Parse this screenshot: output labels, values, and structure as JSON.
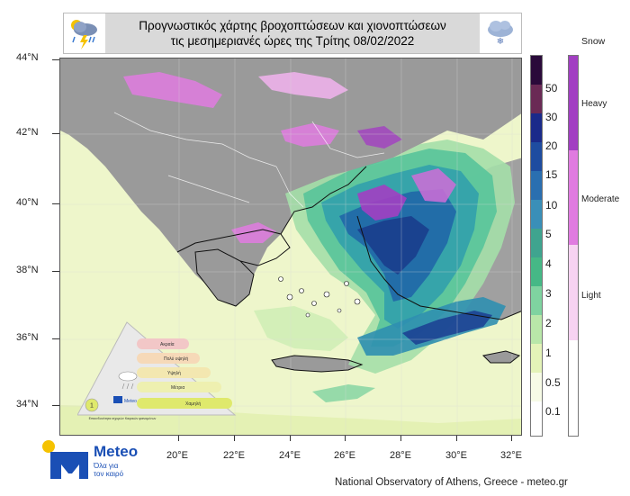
{
  "header": {
    "title_line1": "Προγνωστικός χάρτης βροχοπτώσεων  και χιονοπτώσεων",
    "title_line2": "τις μεσημεριανές ώρες της Τρίτης 08/02/2022",
    "left_icon": "thunderstorm-rain-icon",
    "right_icon": "snow-cloud-icon"
  },
  "axes": {
    "latitudes": [
      "44°N",
      "42°N",
      "40°N",
      "38°N",
      "36°N",
      "34°N"
    ],
    "longitudes": [
      "20°E",
      "22°E",
      "24°E",
      "26°E",
      "28°E",
      "30°E",
      "32°E"
    ]
  },
  "rain_legend": {
    "labels": [
      "50",
      "30",
      "20",
      "15",
      "10",
      "5",
      "4",
      "3",
      "2",
      "1",
      "0.5",
      "0.1"
    ],
    "colors": [
      "#2a0a3a",
      "#6a2a55",
      "#1a2a8a",
      "#1e4ca0",
      "#2a6fb0",
      "#3a8fb8",
      "#3fa48f",
      "#46b886",
      "#7fd3a0",
      "#b9e7a9",
      "#e4f3b8",
      "#f7fbe6",
      "#ffffff"
    ]
  },
  "snow_legend": {
    "title": "Snow",
    "labels": [
      "Heavy",
      "Moderate",
      "Light"
    ],
    "colors": [
      "#a23fc2",
      "#e07be0",
      "#f7d3f2"
    ]
  },
  "pyramid": {
    "levels": [
      "Ακραία",
      "Πολύ υψηλή",
      "Υψηλή",
      "Μέτρια",
      "Χαμηλή"
    ],
    "caption": "Επικινδυνότητα ισχυρών Καιρικών φαινομένων",
    "level_marker": "1",
    "brand": "Meteo",
    "colors": [
      "#f2c7c7",
      "#f6d9b8",
      "#f3e7b0",
      "#eef0b0",
      "#dfe96c"
    ]
  },
  "logo": {
    "brand": "Meteo",
    "slogan_line1": "Όλα για",
    "slogan_line2": "τον καιρό"
  },
  "footer": {
    "credit": "National Observatory of Athens, Greece - meteo.gr"
  }
}
